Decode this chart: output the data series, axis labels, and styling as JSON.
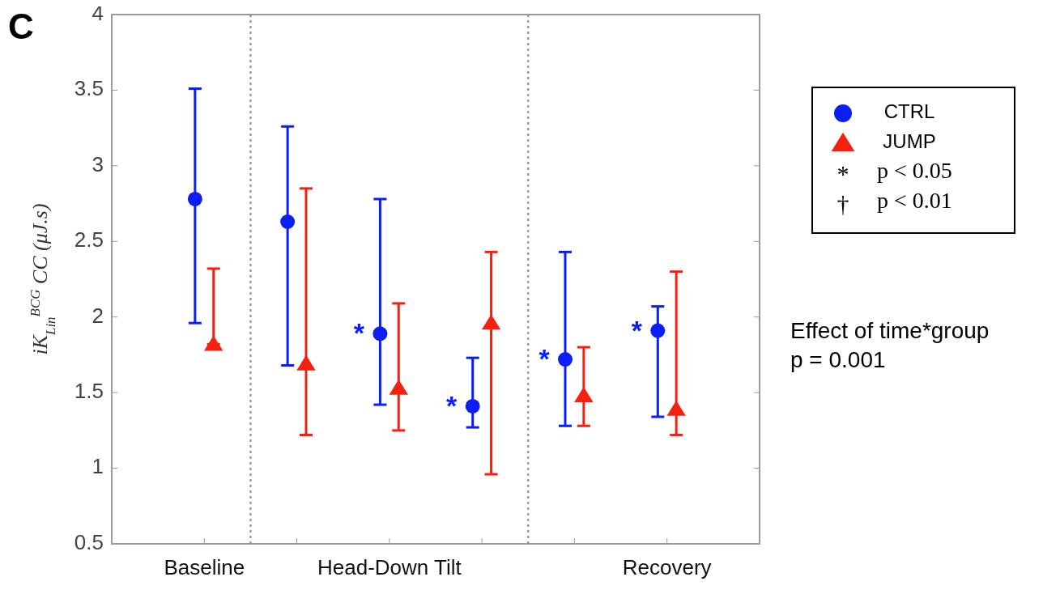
{
  "chart_data": {
    "type": "scatter",
    "ylabel": "iK$_{Lin}$$^{BCG}$ CC (μJ.s)",
    "categories": [
      "Baseline",
      null,
      "Head-Down Tilt",
      null,
      null,
      "Recovery"
    ],
    "ylim": [
      0.5,
      4
    ],
    "yticks": [
      0.5,
      1,
      1.5,
      2,
      2.5,
      3,
      3.5,
      4
    ],
    "grid": false,
    "legend": "right",
    "series": [
      {
        "name": "CTRL",
        "color": "#0a1ef5",
        "marker": "circle",
        "values": [
          2.78,
          2.63,
          1.89,
          1.41,
          1.72,
          1.91
        ],
        "errors": [
          [
            1.96,
            3.51
          ],
          [
            1.68,
            3.26
          ],
          [
            1.42,
            2.78
          ],
          [
            1.27,
            1.73
          ],
          [
            1.28,
            2.43
          ],
          [
            1.34,
            2.07
          ]
        ],
        "value_labels": [
          null,
          null,
          "*",
          "*",
          "*",
          "*"
        ]
      },
      {
        "name": "JUMP",
        "color": "#f5200f",
        "marker": "triangle",
        "values": [
          1.82,
          1.69,
          1.53,
          1.96,
          1.48,
          1.39
        ],
        "errors": [
          [
            1.82,
            2.32
          ],
          [
            1.22,
            2.85
          ],
          [
            1.25,
            2.09
          ],
          [
            0.96,
            2.43
          ],
          [
            1.28,
            1.8
          ],
          [
            1.22,
            2.3
          ]
        ]
      }
    ],
    "annotations": [
      "C",
      "* p < 0.05",
      "† p < 0.01",
      "Effect of time*group\np = 0.001"
    ]
  }
}
